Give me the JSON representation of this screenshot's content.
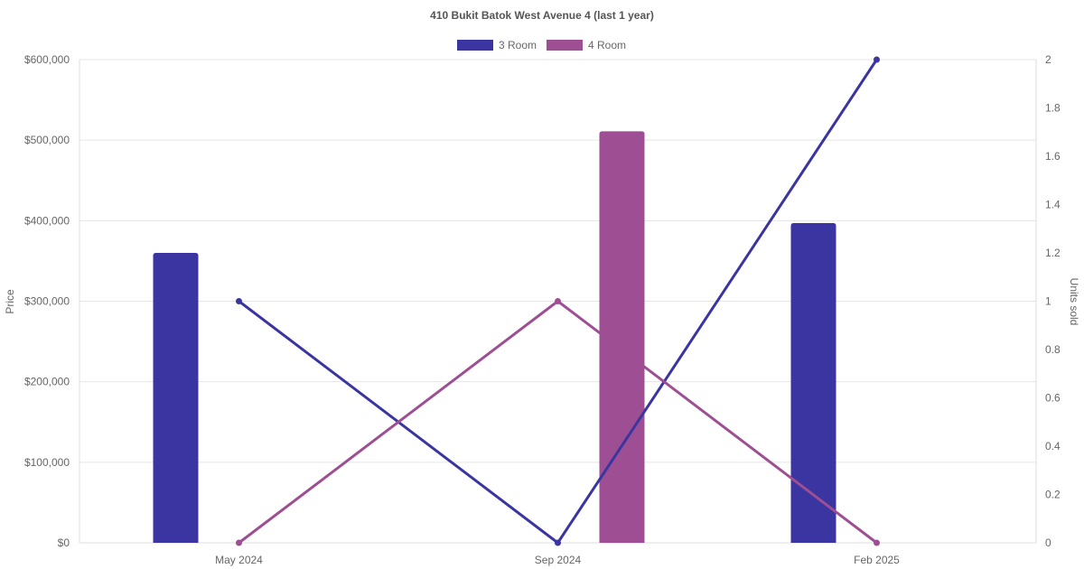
{
  "chart_data": {
    "type": "bar",
    "title": "410 Bukit Batok West Avenue 4 (last 1 year)",
    "categories": [
      "May 2024",
      "Sep 2024",
      "Feb 2025"
    ],
    "y_left": {
      "label": "Price",
      "range": [
        0,
        600000
      ],
      "ticks": [
        "$0",
        "$100,000",
        "$200,000",
        "$300,000",
        "$400,000",
        "$500,000",
        "$600,000"
      ],
      "tick_values": [
        0,
        100000,
        200000,
        300000,
        400000,
        500000,
        600000
      ]
    },
    "y_right": {
      "label": "Units sold",
      "range": [
        0,
        2
      ],
      "ticks": [
        "0",
        "0.2",
        "0.4",
        "0.6",
        "0.8",
        "1",
        "1.2",
        "1.4",
        "1.6",
        "1.8",
        "2"
      ],
      "tick_values": [
        0,
        0.2,
        0.4,
        0.6,
        0.8,
        1,
        1.2,
        1.4,
        1.6,
        1.8,
        2
      ]
    },
    "grid": true,
    "legend_position": "top-center",
    "series": [
      {
        "name": "3 Room",
        "color": "#3a35a0",
        "kind": "bar",
        "axis": "left",
        "values": [
          360000,
          null,
          397000
        ]
      },
      {
        "name": "4 Room",
        "color": "#9e4f93",
        "kind": "bar",
        "axis": "left",
        "values": [
          null,
          511000,
          null
        ]
      },
      {
        "name": "3 Room",
        "color": "#3a35a0",
        "kind": "line",
        "axis": "right",
        "values": [
          1,
          0,
          2
        ]
      },
      {
        "name": "4 Room",
        "color": "#9e4f93",
        "kind": "line",
        "axis": "right",
        "values": [
          0,
          1,
          0
        ]
      }
    ],
    "legend": [
      {
        "name": "3 Room",
        "color": "#3a35a0"
      },
      {
        "name": "4 Room",
        "color": "#9e4f93"
      }
    ]
  }
}
